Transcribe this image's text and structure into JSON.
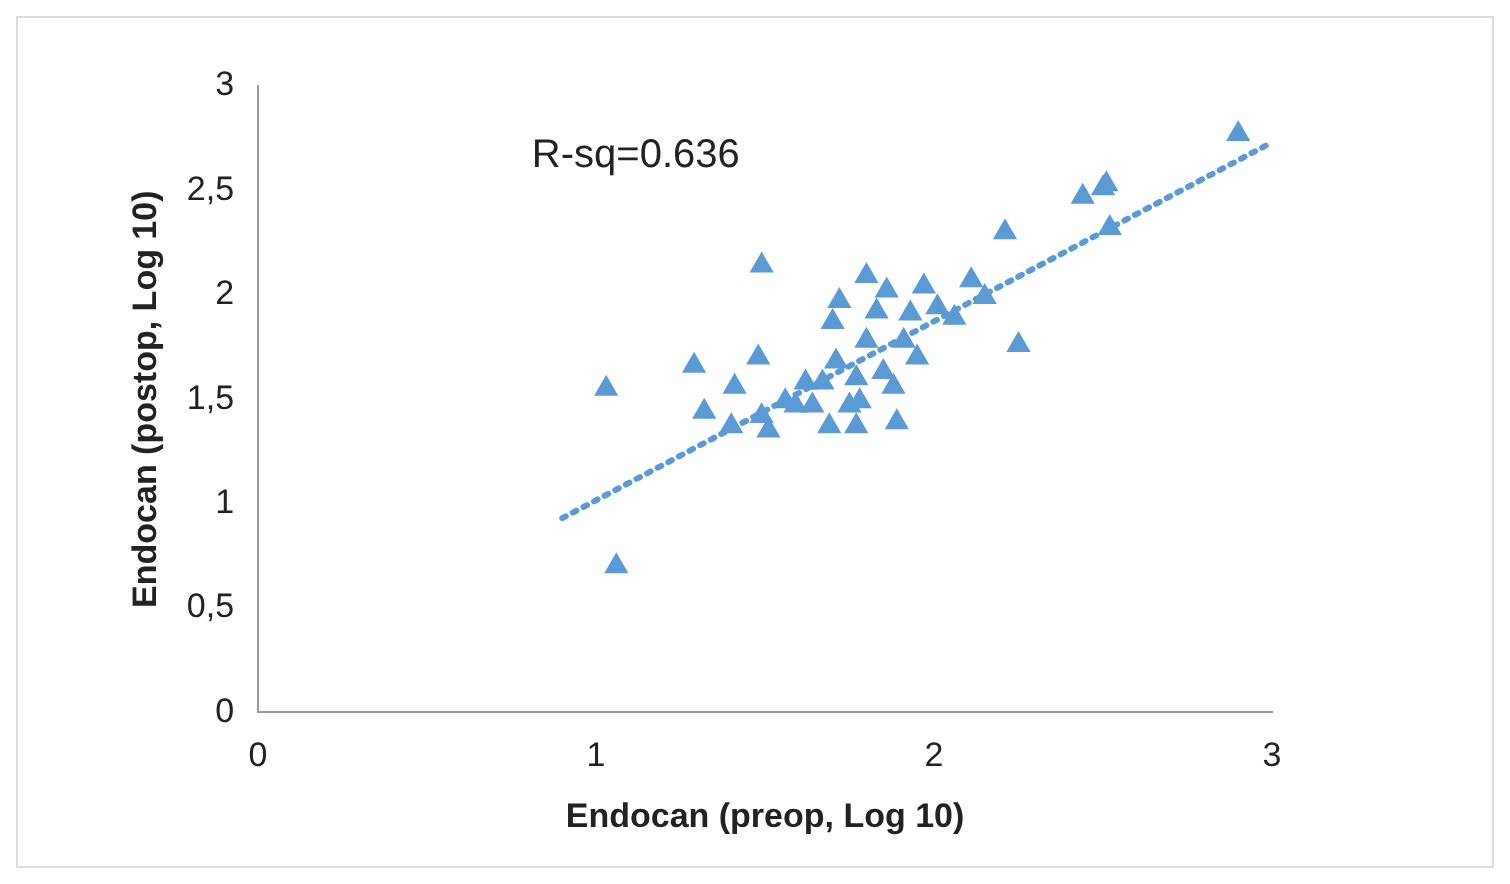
{
  "chart_data": {
    "type": "scatter",
    "xlabel": "Endocan (preop, Log 10)",
    "ylabel": "Endocan (postop, Log 10)",
    "annotations": [
      "R-sq=0.636"
    ],
    "xlim": [
      0,
      3
    ],
    "xticks": [
      0,
      1,
      2,
      3
    ],
    "ylim": [
      0,
      3
    ],
    "yticks": [
      0,
      {
        "value": 0.5,
        "label": "0,5"
      },
      1,
      {
        "value": 1.5,
        "label": "1,5"
      },
      2,
      {
        "value": 2.5,
        "label": "2,5"
      },
      3
    ],
    "grid": false,
    "legend": false,
    "marker": "triangle",
    "series": [
      {
        "color": "#5b9bd5",
        "x": [
          1.03,
          1.06,
          1.29,
          1.49,
          1.32,
          1.41,
          1.4,
          1.49,
          1.48,
          1.51,
          1.56,
          1.62,
          1.67,
          1.71,
          1.64,
          1.72,
          1.75,
          1.77,
          1.8,
          1.8,
          1.83,
          1.86,
          1.85,
          1.88,
          1.89,
          1.91,
          1.93,
          1.97,
          1.95,
          2.01,
          2.06,
          2.11,
          2.15,
          2.21,
          2.25,
          2.44,
          2.51,
          2.52,
          2.5,
          2.9,
          1.77,
          1.7,
          1.78,
          1.69,
          1.59
        ],
        "values": [
          1.55,
          0.7,
          1.66,
          2.14,
          1.44,
          1.56,
          1.37,
          1.42,
          1.7,
          1.35,
          1.49,
          1.58,
          1.58,
          1.68,
          1.47,
          1.97,
          1.47,
          1.37,
          1.78,
          2.09,
          1.92,
          2.02,
          1.63,
          1.56,
          1.39,
          1.78,
          1.91,
          2.04,
          1.7,
          1.94,
          1.89,
          2.07,
          1.99,
          2.3,
          1.76,
          2.47,
          2.53,
          2.32,
          2.51,
          2.77,
          1.6,
          1.87,
          1.49,
          1.37,
          1.47
        ]
      },
      {
        "type": "line",
        "color": "#5b9bd5",
        "marker": "none",
        "line_style": "dotted",
        "x": [
          0.9,
          3.0
        ],
        "values": [
          0.93,
          2.73
        ]
      }
    ]
  }
}
